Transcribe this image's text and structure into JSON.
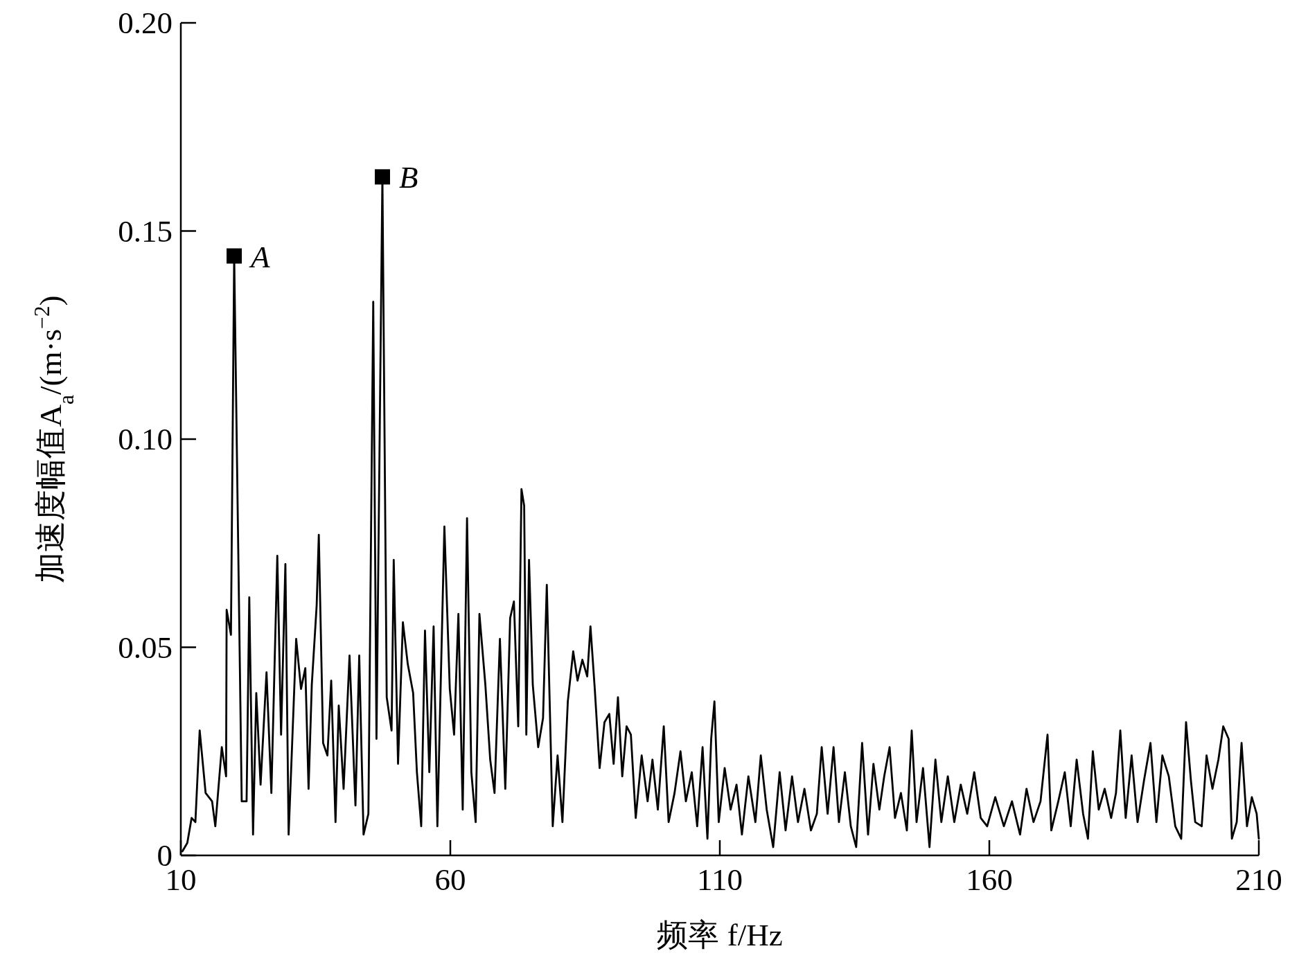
{
  "chart_data": {
    "type": "line",
    "xlabel": "频率 f/Hz",
    "ylabel": "加速度幅值A$_{a}$/(m·s$^{−2}$)",
    "xlim": [
      10,
      210
    ],
    "ylim": [
      0,
      0.2
    ],
    "xticks": [
      10,
      60,
      110,
      160,
      210
    ],
    "yticks": [
      0,
      {
        "value": 0.05,
        "label": "0.05"
      },
      {
        "value": 0.1,
        "label": "0.10"
      },
      {
        "value": 0.15,
        "label": "0.15"
      },
      {
        "value": 0.2,
        "label": "0.20"
      }
    ],
    "series": [
      {
        "color": "#000000",
        "x": [
          10.3,
          11.2,
          12.0,
          12.7,
          13.5,
          14.6,
          15.8,
          16.4,
          17.6,
          18.4,
          18.5,
          19.3,
          19.9,
          21.3,
          22.2,
          22.7,
          23.4,
          24.0,
          24.8,
          25.9,
          26.8,
          27.9,
          28.6,
          29.4,
          30.0,
          30.6,
          31.4,
          32.3,
          33.1,
          33.7,
          34.3,
          35.2,
          35.6,
          36.4,
          37.2,
          37.9,
          38.7,
          39.3,
          40.2,
          41.3,
          42.4,
          43.1,
          43.9,
          44.8,
          45.7,
          46.3,
          47.4,
          48.2,
          49.1,
          49.5,
          50.3,
          51.2,
          52.1,
          53.1,
          53.8,
          54.6,
          55.3,
          56.1,
          56.9,
          57.6,
          58.9,
          59.9,
          60.7,
          61.5,
          62.3,
          63.1,
          63.9,
          64.7,
          65.4,
          66.5,
          67.4,
          68.2,
          69.2,
          70.2,
          71.1,
          71.8,
          72.6,
          73.2,
          73.7,
          74.1,
          74.6,
          75.3,
          76.3,
          77.2,
          77.9,
          79.0,
          79.9,
          80.8,
          81.8,
          82.8,
          83.6,
          84.5,
          85.4,
          86.0,
          86.8,
          87.7,
          88.6,
          89.5,
          90.3,
          91.1,
          91.9,
          92.7,
          93.5,
          94.4,
          95.5,
          96.6,
          97.5,
          98.5,
          99.6,
          100.5,
          101.6,
          102.7,
          103.7,
          104.8,
          105.8,
          106.8,
          107.7,
          108.4,
          109.0,
          109.8,
          110.9,
          112.0,
          113.1,
          114.1,
          115.3,
          116.6,
          117.6,
          118.7,
          119.9,
          121.1,
          122.2,
          123.4,
          124.5,
          125.7,
          126.9,
          128.0,
          128.9,
          130.0,
          131.1,
          132.1,
          133.2,
          134.3,
          135.3,
          136.4,
          137.5,
          138.5,
          139.6,
          140.5,
          141.5,
          142.5,
          143.6,
          144.7,
          145.6,
          146.5,
          147.7,
          148.9,
          150.0,
          151.1,
          152.3,
          153.5,
          154.7,
          155.9,
          157.2,
          158.4,
          159.6,
          161.1,
          162.7,
          164.2,
          165.7,
          166.9,
          168.2,
          169.5,
          170.8,
          171.5,
          172.8,
          174.0,
          175.1,
          176.2,
          177.4,
          178.3,
          179.2,
          180.3,
          181.4,
          182.6,
          183.5,
          184.3,
          185.3,
          186.4,
          187.5,
          188.7,
          189.9,
          191.0,
          192.1,
          193.3,
          194.5,
          195.6,
          196.5,
          197.4,
          198.2,
          199.4,
          200.3,
          201.4,
          202.5,
          203.4,
          204.4,
          205.0,
          205.9,
          206.8,
          207.8,
          208.7,
          209.6,
          210.0
        ],
        "values": [
          0.001,
          0.003,
          0.009,
          0.008,
          0.03,
          0.015,
          0.013,
          0.007,
          0.026,
          0.019,
          0.059,
          0.053,
          0.144,
          0.013,
          0.013,
          0.062,
          0.005,
          0.039,
          0.017,
          0.044,
          0.015,
          0.072,
          0.029,
          0.07,
          0.005,
          0.025,
          0.052,
          0.04,
          0.045,
          0.016,
          0.041,
          0.06,
          0.077,
          0.027,
          0.024,
          0.042,
          0.008,
          0.036,
          0.016,
          0.048,
          0.012,
          0.048,
          0.005,
          0.01,
          0.133,
          0.028,
          0.163,
          0.038,
          0.03,
          0.071,
          0.022,
          0.056,
          0.046,
          0.039,
          0.02,
          0.007,
          0.054,
          0.02,
          0.055,
          0.007,
          0.079,
          0.04,
          0.029,
          0.058,
          0.011,
          0.081,
          0.02,
          0.008,
          0.058,
          0.041,
          0.023,
          0.015,
          0.052,
          0.016,
          0.057,
          0.061,
          0.031,
          0.088,
          0.084,
          0.029,
          0.071,
          0.041,
          0.026,
          0.033,
          0.065,
          0.007,
          0.024,
          0.008,
          0.037,
          0.049,
          0.042,
          0.047,
          0.043,
          0.055,
          0.04,
          0.021,
          0.032,
          0.034,
          0.022,
          0.038,
          0.019,
          0.031,
          0.029,
          0.009,
          0.024,
          0.013,
          0.023,
          0.011,
          0.031,
          0.008,
          0.015,
          0.025,
          0.013,
          0.02,
          0.007,
          0.026,
          0.004,
          0.028,
          0.037,
          0.008,
          0.021,
          0.011,
          0.017,
          0.005,
          0.019,
          0.008,
          0.024,
          0.011,
          0.002,
          0.02,
          0.006,
          0.019,
          0.008,
          0.016,
          0.006,
          0.01,
          0.026,
          0.01,
          0.026,
          0.008,
          0.02,
          0.007,
          0.002,
          0.027,
          0.005,
          0.022,
          0.011,
          0.019,
          0.026,
          0.009,
          0.015,
          0.006,
          0.03,
          0.008,
          0.021,
          0.002,
          0.023,
          0.008,
          0.019,
          0.008,
          0.017,
          0.01,
          0.02,
          0.009,
          0.007,
          0.014,
          0.007,
          0.013,
          0.005,
          0.016,
          0.008,
          0.013,
          0.029,
          0.006,
          0.013,
          0.02,
          0.007,
          0.023,
          0.01,
          0.004,
          0.025,
          0.011,
          0.016,
          0.009,
          0.015,
          0.03,
          0.009,
          0.024,
          0.008,
          0.018,
          0.027,
          0.008,
          0.024,
          0.019,
          0.007,
          0.004,
          0.032,
          0.018,
          0.008,
          0.007,
          0.024,
          0.016,
          0.023,
          0.031,
          0.028,
          0.004,
          0.008,
          0.027,
          0.007,
          0.014,
          0.01,
          0.004
        ]
      },
      {
        "type": "scatter",
        "marker": "square",
        "color": "#000000",
        "x": [
          19.9,
          47.4
        ],
        "values": [
          0.144,
          0.163
        ]
      }
    ],
    "annotations": [
      {
        "text": "A",
        "x": 19.9,
        "y": 0.144
      },
      {
        "text": "B",
        "x": 47.4,
        "y": 0.163
      }
    ]
  }
}
